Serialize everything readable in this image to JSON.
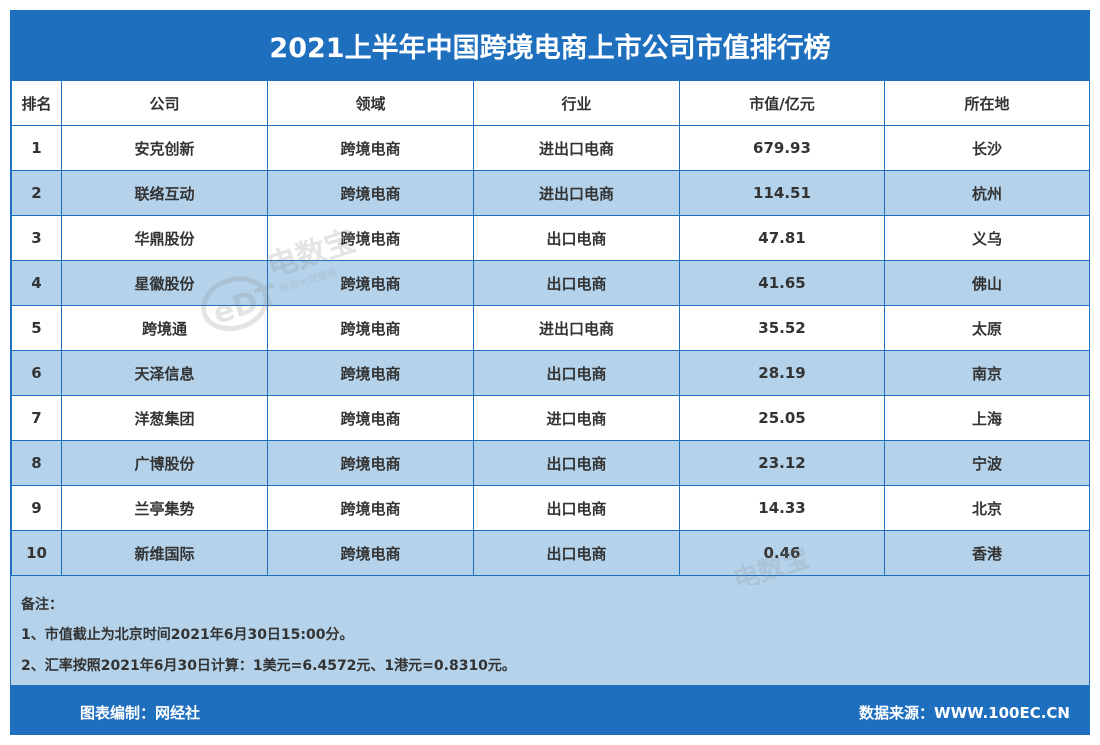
{
  "chart_data": {
    "type": "table",
    "title": "2021上半年中国跨境电商上市公司市值排行榜",
    "columns": [
      "排名",
      "公司",
      "领域",
      "行业",
      "市值/亿元",
      "所在地"
    ],
    "rows": [
      [
        "1",
        "安克创新",
        "跨境电商",
        "进出口电商",
        "679.93",
        "长沙"
      ],
      [
        "2",
        "联络互动",
        "跨境电商",
        "进出口电商",
        "114.51",
        "杭州"
      ],
      [
        "3",
        "华鼎股份",
        "跨境电商",
        "出口电商",
        "47.81",
        "义乌"
      ],
      [
        "4",
        "星徽股份",
        "跨境电商",
        "出口电商",
        "41.65",
        "佛山"
      ],
      [
        "5",
        "跨境通",
        "跨境电商",
        "进出口电商",
        "35.52",
        "太原"
      ],
      [
        "6",
        "天泽信息",
        "跨境电商",
        "出口电商",
        "28.19",
        "南京"
      ],
      [
        "7",
        "洋葱集团",
        "跨境电商",
        "进口电商",
        "25.05",
        "上海"
      ],
      [
        "8",
        "广博股份",
        "跨境电商",
        "出口电商",
        "23.12",
        "宁波"
      ],
      [
        "9",
        "兰亭集势",
        "跨境电商",
        "出口电商",
        "14.33",
        "北京"
      ],
      [
        "10",
        "新维国际",
        "跨境电商",
        "出口电商",
        "0.46",
        "香港"
      ]
    ]
  },
  "notes": {
    "heading": "备注：",
    "line1": "1、市值截止为北京时间2021年6月30日15:00分。",
    "line2": "2、汇率按照2021年6月30日计算：1美元=6.4572元、1港元=0.8310元。"
  },
  "footer": {
    "left": "图表编制：网经社",
    "right": "数据来源：WWW.100EC.CN"
  },
  "watermark": {
    "logo_text": "eDT",
    "brand_text": "电数宝",
    "sub_text": "电商大数据库"
  },
  "colors": {
    "frame_blue": "#1f6fbf",
    "stripe_blue": "#b4d2ea",
    "text": "#333333",
    "white": "#ffffff"
  }
}
